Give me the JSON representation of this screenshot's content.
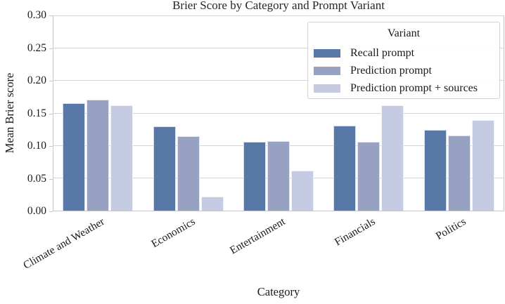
{
  "chart_data": {
    "type": "bar",
    "title": "Brier Score by Category and Prompt Variant",
    "xlabel": "Category",
    "ylabel": "Mean Brier score",
    "ylim": [
      0,
      0.3
    ],
    "ytick_step": 0.05,
    "ytick_labels": [
      "0.00",
      "0.05",
      "0.10",
      "0.15",
      "0.20",
      "0.25",
      "0.30"
    ],
    "grid": true,
    "categories": [
      "Climate and Weather",
      "Economics",
      "Entertainment",
      "Financials",
      "Politics"
    ],
    "legend": {
      "title": "Variant",
      "position": "upper right"
    },
    "series": [
      {
        "name": "Recall prompt",
        "color": "#5878a8",
        "values": [
          0.166,
          0.13,
          0.106,
          0.131,
          0.125
        ]
      },
      {
        "name": "Prediction prompt",
        "color": "#97a1c2",
        "values": [
          0.171,
          0.115,
          0.107,
          0.106,
          0.116
        ]
      },
      {
        "name": "Prediction prompt + sources",
        "color": "#c6cbe4",
        "values": [
          0.162,
          0.022,
          0.062,
          0.163,
          0.14
        ]
      }
    ],
    "colors": {
      "grid": "#d4d4d9",
      "spine": "#c6c6ce",
      "text": "#262626"
    }
  }
}
